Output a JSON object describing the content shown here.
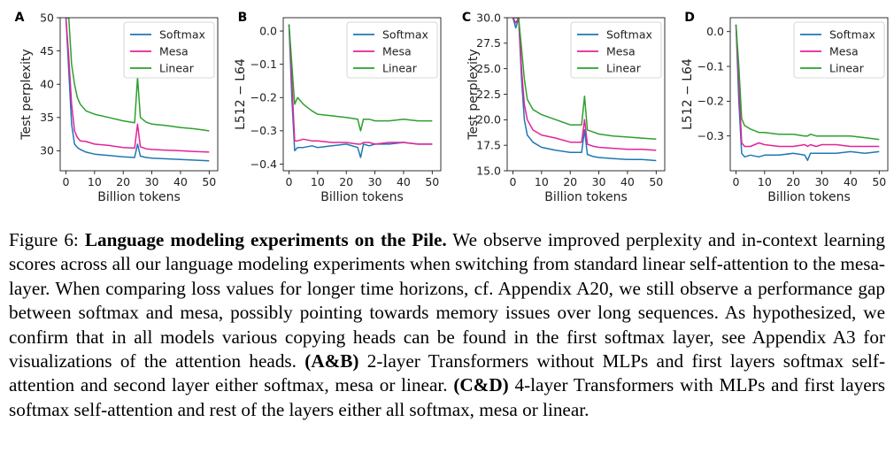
{
  "figure": {
    "label": "Figure 6:",
    "title": "Language modeling experiments on the Pile.",
    "caption_part1": "We observe improved perplexity and in-context learning scores across all our language modeling experiments when switching from standard linear self-attention to the mesa-layer. When comparing loss values for longer time horizons, cf. Appendix A20, we still observe a performance gap between softmax and mesa, possibly pointing towards memory issues over long sequences. As hypothesized, we confirm that in all models various copying heads can be found in the first softmax layer, see Appendix A3 for visualizations of the attention heads.",
    "ab_label": "(A&B)",
    "caption_part2": "2-layer Transformers without MLPs and first layers softmax self-attention and second layer either softmax, mesa or linear.",
    "cd_label": "(C&D)",
    "caption_part3": "4-layer Transformers with MLPs and first layers softmax self-attention and rest of the layers either all softmax, mesa or linear."
  },
  "colors": {
    "softmax": "#1f77b4",
    "mesa": "#e3239a",
    "linear": "#2ca02c"
  },
  "chart_data": [
    {
      "panel": "A",
      "type": "line",
      "xlabel": "Billion tokens",
      "ylabel": "Test perplexity",
      "xlim": [
        -2,
        53
      ],
      "ylim": [
        27,
        50
      ],
      "xticks": [
        0,
        10,
        20,
        30,
        40,
        50
      ],
      "yticks": [
        30,
        35,
        40,
        45,
        50
      ],
      "legend": "top-right",
      "series": [
        {
          "name": "Softmax",
          "x": [
            0,
            1,
            2,
            3,
            4,
            5,
            7,
            10,
            15,
            20,
            24,
            25,
            26,
            28,
            30,
            35,
            40,
            45,
            50
          ],
          "y": [
            50,
            42,
            34,
            31,
            30.5,
            30.2,
            29.8,
            29.5,
            29.3,
            29.1,
            29,
            31,
            29.2,
            29,
            28.9,
            28.8,
            28.7,
            28.6,
            28.5
          ]
        },
        {
          "name": "Mesa",
          "x": [
            0,
            1,
            2,
            3,
            4,
            5,
            7,
            10,
            15,
            20,
            24,
            25,
            26,
            28,
            30,
            35,
            40,
            45,
            50
          ],
          "y": [
            50,
            44,
            37,
            33,
            32,
            31.5,
            31.4,
            31,
            30.8,
            30.5,
            30.4,
            34,
            30.6,
            30.3,
            30.2,
            30.1,
            30,
            29.9,
            29.8
          ]
        },
        {
          "name": "Linear",
          "x": [
            0,
            1,
            2,
            3,
            4,
            5,
            7,
            10,
            15,
            20,
            24,
            25,
            26,
            28,
            30,
            35,
            40,
            45,
            50
          ],
          "y": [
            50,
            50,
            43,
            40,
            38,
            37,
            36,
            35.5,
            35,
            34.5,
            34.2,
            41,
            35,
            34.3,
            34,
            33.8,
            33.5,
            33.3,
            33
          ]
        }
      ]
    },
    {
      "panel": "B",
      "type": "line",
      "xlabel": "Billion tokens",
      "ylabel": "L512 − L64",
      "xlim": [
        -2,
        53
      ],
      "ylim": [
        -0.42,
        0.04
      ],
      "xticks": [
        0,
        10,
        20,
        30,
        40,
        50
      ],
      "yticks": [
        0.0,
        -0.1,
        -0.2,
        -0.3,
        -0.4
      ],
      "ytick_labels": [
        "0.0",
        "−0.1",
        "−0.2",
        "−0.3",
        "−0.4"
      ],
      "legend": "top-right",
      "series": [
        {
          "name": "Softmax",
          "x": [
            0,
            1,
            2,
            3,
            5,
            8,
            10,
            15,
            20,
            24,
            25,
            26,
            28,
            30,
            35,
            40,
            45,
            50
          ],
          "y": [
            0.02,
            -0.2,
            -0.36,
            -0.35,
            -0.35,
            -0.345,
            -0.35,
            -0.345,
            -0.34,
            -0.35,
            -0.38,
            -0.34,
            -0.345,
            -0.34,
            -0.34,
            -0.335,
            -0.34,
            -0.34
          ]
        },
        {
          "name": "Mesa",
          "x": [
            0,
            1,
            2,
            3,
            5,
            8,
            10,
            15,
            20,
            24,
            25,
            26,
            28,
            30,
            35,
            40,
            45,
            50
          ],
          "y": [
            0.02,
            -0.15,
            -0.33,
            -0.33,
            -0.325,
            -0.33,
            -0.33,
            -0.335,
            -0.335,
            -0.34,
            -0.34,
            -0.335,
            -0.335,
            -0.34,
            -0.335,
            -0.335,
            -0.34,
            -0.34
          ]
        },
        {
          "name": "Linear",
          "x": [
            0,
            1,
            2,
            3,
            5,
            8,
            10,
            15,
            20,
            24,
            25,
            26,
            28,
            30,
            35,
            40,
            45,
            50
          ],
          "y": [
            0.02,
            -0.1,
            -0.22,
            -0.2,
            -0.22,
            -0.24,
            -0.25,
            -0.255,
            -0.26,
            -0.265,
            -0.3,
            -0.265,
            -0.265,
            -0.27,
            -0.27,
            -0.265,
            -0.27,
            -0.27
          ]
        }
      ]
    },
    {
      "panel": "C",
      "type": "line",
      "xlabel": "Billion tokens",
      "ylabel": "Test perplexity",
      "xlim": [
        -2,
        53
      ],
      "ylim": [
        15,
        30
      ],
      "xticks": [
        0,
        10,
        20,
        30,
        40,
        50
      ],
      "yticks": [
        15.0,
        17.5,
        20.0,
        22.5,
        25.0,
        27.5,
        30.0
      ],
      "ytick_labels": [
        "15.0",
        "17.5",
        "20.0",
        "22.5",
        "25.0",
        "27.5",
        "30.0"
      ],
      "legend": "top-right",
      "series": [
        {
          "name": "Softmax",
          "x": [
            0,
            1,
            2,
            3,
            4,
            5,
            7,
            10,
            15,
            20,
            24,
            25,
            26,
            28,
            30,
            35,
            40,
            45,
            50
          ],
          "y": [
            30,
            29,
            30,
            24,
            20,
            18.5,
            17.8,
            17.3,
            17,
            16.8,
            16.8,
            19,
            16.6,
            16.4,
            16.3,
            16.2,
            16.1,
            16.1,
            16
          ]
        },
        {
          "name": "Mesa",
          "x": [
            0,
            1,
            2,
            3,
            4,
            5,
            7,
            10,
            15,
            20,
            24,
            25,
            26,
            28,
            30,
            35,
            40,
            45,
            50
          ],
          "y": [
            30,
            29.5,
            30,
            25,
            21.5,
            20,
            19,
            18.5,
            18.2,
            17.8,
            17.8,
            20,
            17.6,
            17.4,
            17.3,
            17.2,
            17.1,
            17.1,
            17
          ]
        },
        {
          "name": "Linear",
          "x": [
            0,
            1,
            2,
            3,
            4,
            5,
            7,
            10,
            15,
            20,
            24,
            25,
            26,
            28,
            30,
            35,
            40,
            45,
            50
          ],
          "y": [
            30,
            30,
            30,
            27,
            24,
            22,
            21,
            20.5,
            20,
            19.5,
            19.5,
            22.3,
            19,
            18.8,
            18.6,
            18.4,
            18.3,
            18.2,
            18.1
          ]
        }
      ]
    },
    {
      "panel": "D",
      "type": "line",
      "xlabel": "Billion tokens",
      "ylabel": "L512 − L64",
      "xlim": [
        -2,
        53
      ],
      "ylim": [
        -0.4,
        0.04
      ],
      "xticks": [
        0,
        10,
        20,
        30,
        40,
        50
      ],
      "yticks": [
        0.0,
        -0.1,
        -0.2,
        -0.3
      ],
      "ytick_labels": [
        "0.0",
        "−0.1",
        "−0.2",
        "−0.3"
      ],
      "legend": "top-right",
      "series": [
        {
          "name": "Softmax",
          "x": [
            0,
            1,
            2,
            3,
            5,
            8,
            10,
            15,
            20,
            24,
            25,
            26,
            28,
            30,
            35,
            40,
            45,
            50
          ],
          "y": [
            0.02,
            -0.2,
            -0.35,
            -0.36,
            -0.355,
            -0.36,
            -0.355,
            -0.355,
            -0.35,
            -0.355,
            -0.37,
            -0.35,
            -0.35,
            -0.35,
            -0.35,
            -0.345,
            -0.35,
            -0.345
          ]
        },
        {
          "name": "Mesa",
          "x": [
            0,
            1,
            2,
            3,
            5,
            8,
            10,
            15,
            20,
            24,
            25,
            26,
            28,
            30,
            35,
            40,
            45,
            50
          ],
          "y": [
            0.02,
            -0.15,
            -0.32,
            -0.33,
            -0.33,
            -0.32,
            -0.325,
            -0.33,
            -0.33,
            -0.325,
            -0.33,
            -0.325,
            -0.33,
            -0.325,
            -0.325,
            -0.33,
            -0.33,
            -0.33
          ]
        },
        {
          "name": "Linear",
          "x": [
            0,
            1,
            2,
            3,
            5,
            8,
            10,
            15,
            20,
            24,
            25,
            26,
            28,
            30,
            35,
            40,
            45,
            50
          ],
          "y": [
            0.02,
            -0.1,
            -0.25,
            -0.27,
            -0.28,
            -0.29,
            -0.29,
            -0.295,
            -0.295,
            -0.3,
            -0.3,
            -0.295,
            -0.3,
            -0.3,
            -0.3,
            -0.3,
            -0.305,
            -0.31
          ]
        }
      ]
    }
  ]
}
